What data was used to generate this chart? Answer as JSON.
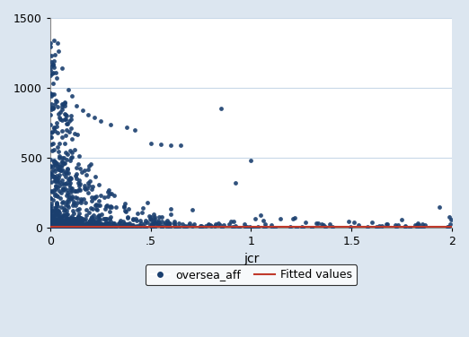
{
  "scatter_color": "#1a3f6f",
  "fit_line_color": "#c0392b",
  "background_color": "#dce6f0",
  "plot_bg_color": "#ffffff",
  "xlabel": "jcr",
  "ylabel": "",
  "xlim": [
    0,
    2
  ],
  "ylim": [
    0,
    1500
  ],
  "xticks": [
    0,
    0.5,
    1.0,
    1.5,
    2.0
  ],
  "xtick_labels": [
    "0",
    ".5",
    "1",
    "1.5",
    "2"
  ],
  "yticks": [
    0,
    500,
    1000,
    1500
  ],
  "ytick_labels": [
    "0",
    "500",
    "1000",
    "1500"
  ],
  "legend_label_scatter": "oversea_aff",
  "legend_label_line": "Fitted values",
  "marker_size": 12,
  "marker_alpha": 0.9,
  "fit_line_y": 8.0
}
